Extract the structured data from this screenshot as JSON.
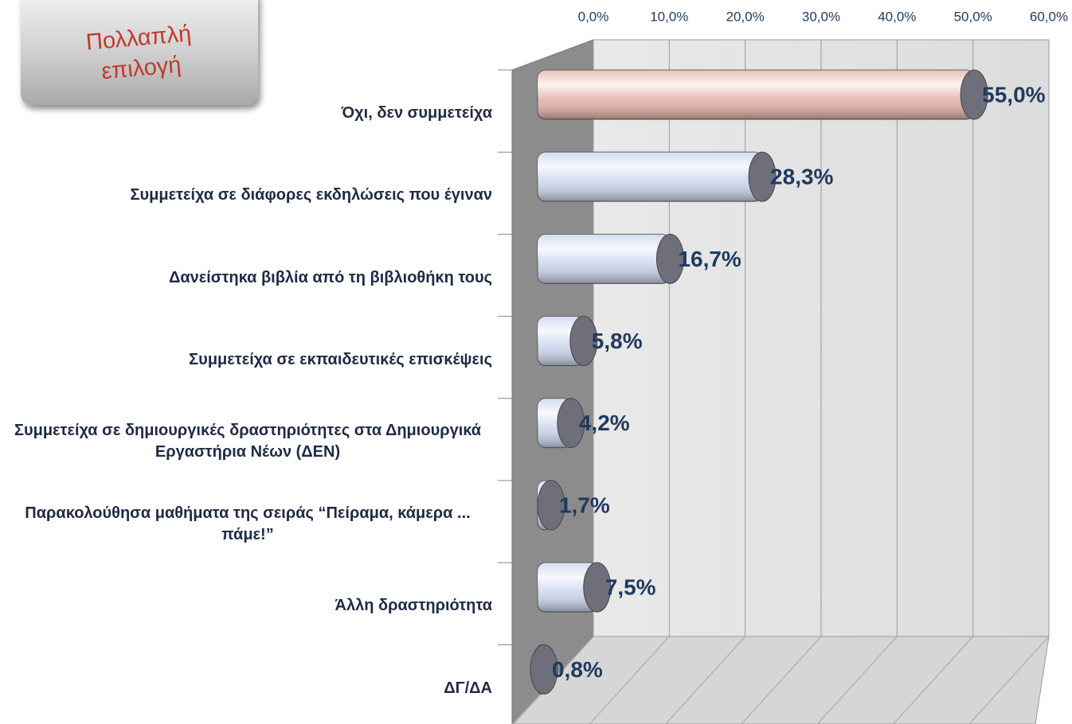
{
  "chart_data": {
    "type": "bar",
    "orientation": "horizontal",
    "annotation": "Πολλαπλή επιλογή",
    "categories": [
      "Όχι, δεν συμμετείχα",
      "Συμμετείχα σε διάφορες εκδηλώσεις που έγιναν",
      "Δανείστηκα βιβλία από τη βιβλιοθήκη τους",
      "Συμμετείχα σε εκπαιδευτικές επισκέψεις",
      "Συμμετείχα σε δημιουργικές δραστηριότητες στα Δημιουργικά Εργαστήρια Νέων (ΔΕΝ)",
      "Παρακολούθησα μαθήματα της σειράς “Πείραμα, κάμερα ... πάμε!”",
      "Άλλη δραστηριότητα",
      "ΔΓ/ΔΑ"
    ],
    "values": [
      55.0,
      28.3,
      16.7,
      5.8,
      4.2,
      1.7,
      7.5,
      0.8
    ],
    "value_labels": [
      "55,0%",
      "28,3%",
      "16,7%",
      "5,8%",
      "4,2%",
      "1,7%",
      "7,5%",
      "0,8%"
    ],
    "colors": [
      "#e6b3a9",
      "#cdd6ee",
      "#cdd6ee",
      "#cdd6ee",
      "#cdd6ee",
      "#cdd6ee",
      "#cdd6ee",
      "#cdd6ee"
    ],
    "xlim": [
      0,
      60
    ],
    "xticks": [
      {
        "value": 0,
        "label": "0,0%"
      },
      {
        "value": 10,
        "label": "10,0%"
      },
      {
        "value": 20,
        "label": "20,0%"
      },
      {
        "value": 30,
        "label": "30,0%"
      },
      {
        "value": 40,
        "label": "40,0%"
      },
      {
        "value": 50,
        "label": "50,0%"
      },
      {
        "value": 60,
        "label": "60,0%"
      }
    ],
    "grid": true
  }
}
